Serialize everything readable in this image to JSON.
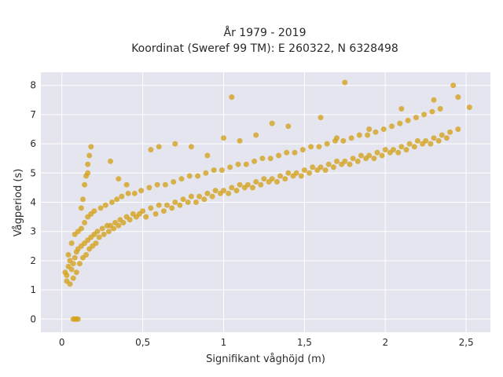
{
  "chart_data": {
    "type": "scatter",
    "title_line1": "År 1979 - 2019",
    "title_line2": "Koordinat (Sweref 99 TM): E 260322, N 6328498",
    "xlabel": "Signifikant våghöjd (m)",
    "ylabel": "Vågperiod (s)",
    "xlim": [
      -0.13,
      2.65
    ],
    "ylim": [
      -0.45,
      8.45
    ],
    "x_ticks": [
      {
        "value": 0,
        "label": "0"
      },
      {
        "value": 0.5,
        "label": "0,5"
      },
      {
        "value": 1,
        "label": "1"
      },
      {
        "value": 1.5,
        "label": "1,5"
      },
      {
        "value": 2,
        "label": "2"
      },
      {
        "value": 2.5,
        "label": "2,5"
      }
    ],
    "y_ticks": [
      {
        "value": 0,
        "label": "0"
      },
      {
        "value": 1,
        "label": "1"
      },
      {
        "value": 2,
        "label": "2"
      },
      {
        "value": 3,
        "label": "3"
      },
      {
        "value": 4,
        "label": "4"
      },
      {
        "value": 5,
        "label": "5"
      },
      {
        "value": 6,
        "label": "6"
      },
      {
        "value": 7,
        "label": "7"
      },
      {
        "value": 8,
        "label": "8"
      }
    ],
    "grid": true,
    "marker_color": "#D4A21F",
    "plot_background": "#E5E5EF",
    "series": [
      {
        "x": [
          0.02,
          0.03,
          0.04,
          0.05,
          0.06,
          0.07,
          0.08,
          0.09,
          0.1,
          0.12,
          0.14,
          0.16,
          0.18,
          0.2,
          0.22,
          0.25,
          0.28,
          0.3,
          0.33,
          0.36,
          0.4,
          0.44,
          0.48,
          0.5,
          0.55,
          0.6,
          0.65,
          0.7,
          0.75,
          0.8,
          0.85,
          0.9,
          0.95,
          1.0,
          1.05,
          1.1,
          1.15,
          1.2,
          1.25,
          1.3,
          1.35,
          1.4,
          1.45,
          1.5,
          1.55,
          1.6,
          1.65,
          1.7,
          1.75,
          1.8,
          1.85,
          1.9,
          1.95,
          2.0,
          2.05,
          2.1,
          2.15,
          2.2,
          2.25,
          2.3,
          2.35,
          2.4,
          2.45,
          0.03,
          0.05,
          0.07,
          0.09,
          0.11,
          0.13,
          0.15,
          0.17,
          0.19,
          0.21,
          0.23,
          0.26,
          0.29,
          0.32,
          0.35,
          0.38,
          0.42,
          0.46,
          0.52,
          0.58,
          0.63,
          0.68,
          0.73,
          0.78,
          0.83,
          0.88,
          0.93,
          0.98,
          1.03,
          1.08,
          1.13,
          1.18,
          1.23,
          1.28,
          1.33,
          1.38,
          1.43,
          1.48,
          1.53,
          1.58,
          1.63,
          1.68,
          1.73,
          1.78,
          1.83,
          1.88,
          1.93,
          1.98,
          2.03,
          2.08,
          2.13,
          2.18,
          2.23,
          2.28,
          2.33,
          2.38,
          0.04,
          0.06,
          0.08,
          0.1,
          0.12,
          0.14,
          0.16,
          0.18,
          0.2,
          0.24,
          0.27,
          0.31,
          0.34,
          0.37,
          0.41,
          0.45,
          0.49,
          0.54,
          0.59,
          0.64,
          0.69,
          0.74,
          0.79,
          0.84,
          0.89,
          0.94,
          0.99,
          1.04,
          1.09,
          1.14,
          1.19,
          1.24,
          1.29,
          1.34,
          1.39,
          1.44,
          1.49,
          1.54,
          1.59,
          1.64,
          1.69,
          1.74,
          1.79,
          1.84,
          1.89,
          1.94,
          1.99,
          2.04,
          2.09,
          2.14,
          2.19,
          2.24,
          2.29,
          2.34,
          0.07,
          0.08,
          0.09,
          0.1,
          0.15,
          0.16,
          0.17,
          0.18,
          0.12,
          0.13,
          0.14,
          0.16,
          0.3,
          0.35,
          0.4,
          0.55,
          0.6,
          0.7,
          0.8,
          0.9,
          1.0,
          1.05,
          1.1,
          1.2,
          1.3,
          1.4,
          1.6,
          1.7,
          1.75,
          1.9,
          2.1,
          2.3,
          2.42,
          2.45,
          2.52
        ],
        "y": [
          1.6,
          1.5,
          1.8,
          2.0,
          1.7,
          1.9,
          2.1,
          2.3,
          2.4,
          2.5,
          2.6,
          2.7,
          2.8,
          2.9,
          3.0,
          3.1,
          3.2,
          3.2,
          3.3,
          3.4,
          3.5,
          3.6,
          3.6,
          3.7,
          3.8,
          3.9,
          3.9,
          4.0,
          4.1,
          4.2,
          4.2,
          4.3,
          4.4,
          4.4,
          4.5,
          4.6,
          4.6,
          4.7,
          4.8,
          4.8,
          4.9,
          5.0,
          5.0,
          5.1,
          5.2,
          5.2,
          5.3,
          5.4,
          5.4,
          5.5,
          5.6,
          5.6,
          5.7,
          5.8,
          5.8,
          5.9,
          6.0,
          6.1,
          6.1,
          6.2,
          6.3,
          6.4,
          6.5,
          1.3,
          1.2,
          1.4,
          1.6,
          1.9,
          2.1,
          2.2,
          2.4,
          2.5,
          2.6,
          2.8,
          2.9,
          3.0,
          3.1,
          3.2,
          3.3,
          3.4,
          3.5,
          3.5,
          3.6,
          3.7,
          3.8,
          3.9,
          4.0,
          4.0,
          4.1,
          4.2,
          4.3,
          4.3,
          4.4,
          4.5,
          4.5,
          4.6,
          4.7,
          4.7,
          4.8,
          4.9,
          4.9,
          5.0,
          5.1,
          5.1,
          5.2,
          5.3,
          5.3,
          5.4,
          5.5,
          5.5,
          5.6,
          5.7,
          5.7,
          5.8,
          5.9,
          6.0,
          6.0,
          6.1,
          6.2,
          2.2,
          2.6,
          2.9,
          3.0,
          3.1,
          3.3,
          3.5,
          3.6,
          3.7,
          3.8,
          3.9,
          4.0,
          4.1,
          4.2,
          4.3,
          4.3,
          4.4,
          4.5,
          4.6,
          4.6,
          4.7,
          4.8,
          4.9,
          4.9,
          5.0,
          5.1,
          5.1,
          5.2,
          5.3,
          5.3,
          5.4,
          5.5,
          5.5,
          5.6,
          5.7,
          5.7,
          5.8,
          5.9,
          5.9,
          6.0,
          6.1,
          6.1,
          6.2,
          6.3,
          6.3,
          6.4,
          6.5,
          6.6,
          6.7,
          6.8,
          6.9,
          7.0,
          7.1,
          7.2,
          0.0,
          0.0,
          0.0,
          0.0,
          4.9,
          5.3,
          5.6,
          5.9,
          3.8,
          4.1,
          4.6,
          5.0,
          5.4,
          4.8,
          4.6,
          5.8,
          5.9,
          6.0,
          5.9,
          5.6,
          6.2,
          7.6,
          6.1,
          6.3,
          6.7,
          6.6,
          6.9,
          6.2,
          8.1,
          6.5,
          7.2,
          7.5,
          8.0,
          7.6,
          7.25
        ]
      }
    ]
  }
}
